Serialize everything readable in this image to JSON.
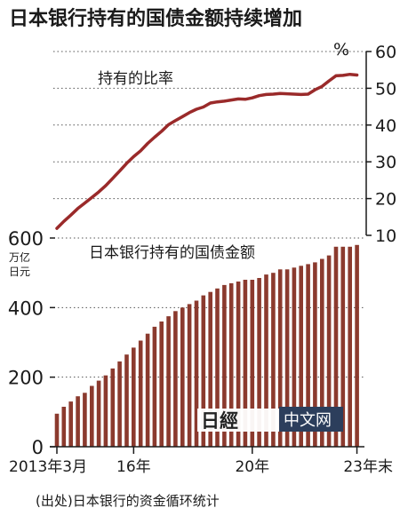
{
  "chart_data": [
    {
      "type": "line",
      "title": "日本银行持有的国债金额持续增加",
      "label": "持有的比率",
      "unit": "%",
      "ylim": [
        10,
        60
      ],
      "yticks": [
        10,
        20,
        30,
        40,
        50,
        60
      ],
      "grid": true,
      "line_color": "#9a2a2a",
      "x": [
        "2013-03",
        "2013-06",
        "2013-09",
        "2013-12",
        "2014-03",
        "2014-06",
        "2014-09",
        "2014-12",
        "2015-03",
        "2015-06",
        "2015-09",
        "2015-12",
        "2016-03",
        "2016-06",
        "2016-09",
        "2016-12",
        "2017-03",
        "2017-06",
        "2017-09",
        "2017-12",
        "2018-03",
        "2018-06",
        "2018-09",
        "2018-12",
        "2019-03",
        "2019-06",
        "2019-09",
        "2019-12",
        "2020-03",
        "2020-06",
        "2020-09",
        "2020-12",
        "2021-03",
        "2021-06",
        "2021-09",
        "2021-12",
        "2022-03",
        "2022-06",
        "2022-09",
        "2022-12",
        "2023-03",
        "2023-06",
        "2023-09",
        "2023-12"
      ],
      "values": [
        11.9,
        13.8,
        15.5,
        17.3,
        18.8,
        20.3,
        21.8,
        23.5,
        25.5,
        27.5,
        29.6,
        31.4,
        33.0,
        35.0,
        36.7,
        38.3,
        40.1,
        41.2,
        42.3,
        43.4,
        44.3,
        44.9,
        46.0,
        46.3,
        46.5,
        46.8,
        47.1,
        47.0,
        47.4,
        48.0,
        48.3,
        48.4,
        48.6,
        48.5,
        48.4,
        48.3,
        48.4,
        49.6,
        50.5,
        52.0,
        53.4,
        53.5,
        53.8,
        53.6
      ]
    },
    {
      "type": "bar",
      "label": "日本银行持有的国债金额",
      "unit_line1": "万亿",
      "unit_line2": "日元",
      "ylim": [
        0,
        600
      ],
      "yticks": [
        0,
        200,
        400,
        600
      ],
      "grid": true,
      "bar_color": "#8b3a2e",
      "categories": [
        "2013-03",
        "2013-06",
        "2013-09",
        "2013-12",
        "2014-03",
        "2014-06",
        "2014-09",
        "2014-12",
        "2015-03",
        "2015-06",
        "2015-09",
        "2015-12",
        "2016-03",
        "2016-06",
        "2016-09",
        "2016-12",
        "2017-03",
        "2017-06",
        "2017-09",
        "2017-12",
        "2018-03",
        "2018-06",
        "2018-09",
        "2018-12",
        "2019-03",
        "2019-06",
        "2019-09",
        "2019-12",
        "2020-03",
        "2020-06",
        "2020-09",
        "2020-12",
        "2021-03",
        "2021-06",
        "2021-09",
        "2021-12",
        "2022-03",
        "2022-06",
        "2022-09",
        "2022-12",
        "2023-03",
        "2023-06",
        "2023-09",
        "2023-12"
      ],
      "values": [
        95,
        115,
        130,
        145,
        155,
        175,
        190,
        205,
        225,
        245,
        265,
        285,
        305,
        325,
        345,
        360,
        375,
        390,
        400,
        410,
        420,
        435,
        445,
        455,
        465,
        470,
        475,
        480,
        480,
        485,
        495,
        500,
        510,
        510,
        515,
        520,
        525,
        530,
        540,
        550,
        575,
        575,
        575,
        580
      ],
      "x_tick_labels": [
        {
          "index": 0,
          "text": "2013年3月"
        },
        {
          "index": 11,
          "text": "16年"
        },
        {
          "index": 28,
          "text": "20年"
        },
        {
          "index": 43,
          "text": "23年末"
        }
      ]
    }
  ],
  "footer": {
    "source": "(出处)日本银行的资金循环统计",
    "watermark_logo": "日經",
    "watermark_text": "中文网"
  }
}
